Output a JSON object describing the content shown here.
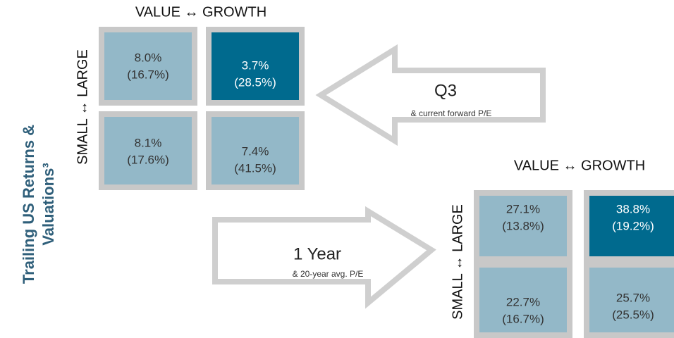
{
  "title": {
    "line1": "Trailing US Returns &",
    "line2": "Valuations³"
  },
  "grids": [
    {
      "header": "VALUE ↔ GROWTH",
      "side_label": "SMALL ↔ LARGE",
      "cells": [
        {
          "value": "8.0%",
          "pe": "(16.7%)"
        },
        {
          "value": "3.7%",
          "pe": "(28.5%)"
        },
        {
          "value": "8.1%",
          "pe": "(17.6%)"
        },
        {
          "value": "7.4%",
          "pe": "(41.5%)"
        }
      ]
    },
    {
      "header": "VALUE ↔ GROWTH",
      "side_label": "SMALL ↔ LARGE",
      "cells": [
        {
          "value": "27.1%",
          "pe": "(13.8%)"
        },
        {
          "value": "38.8%",
          "pe": "(19.2%)"
        },
        {
          "value": "22.7%",
          "pe": "(16.7%)"
        },
        {
          "value": "25.7%",
          "pe": "(25.5%)"
        }
      ]
    }
  ],
  "arrows": [
    {
      "label": "Q3",
      "sublabel": "& current forward P/E"
    },
    {
      "label": "1 Year",
      "sublabel": "& 20-year avg. P/E"
    }
  ]
}
